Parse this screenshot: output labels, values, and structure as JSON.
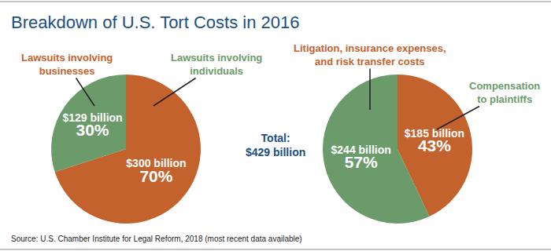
{
  "title": "Breakdown of U.S. Tort Costs in 2016",
  "annotation": "Total:\n$429 billion",
  "source": "Source: U.S. Chamber Institute for Legal Reform, 2018 (most recent data available)",
  "chart_data": [
    {
      "type": "pie",
      "categories": [
        "Lawsuits involving\nbusinesses",
        "Lawsuits involving\nindividuals"
      ],
      "values": [
        70,
        30
      ],
      "value_labels": [
        "70%",
        "30%"
      ],
      "amount_labels": [
        "$300 billion",
        "$129 billion"
      ],
      "colors": [
        "#c4622d",
        "#6b9a6b"
      ],
      "data_labels": true
    },
    {
      "type": "pie",
      "categories": [
        "Litigation, insurance expenses,\nand risk transfer costs",
        "Compensation\nto plaintiffs"
      ],
      "values": [
        43,
        57
      ],
      "value_labels": [
        "43%",
        "57%"
      ],
      "amount_labels": [
        "$185 billion",
        "$244 billion"
      ],
      "colors": [
        "#c4622d",
        "#6b9a6b"
      ],
      "data_labels": true
    }
  ]
}
